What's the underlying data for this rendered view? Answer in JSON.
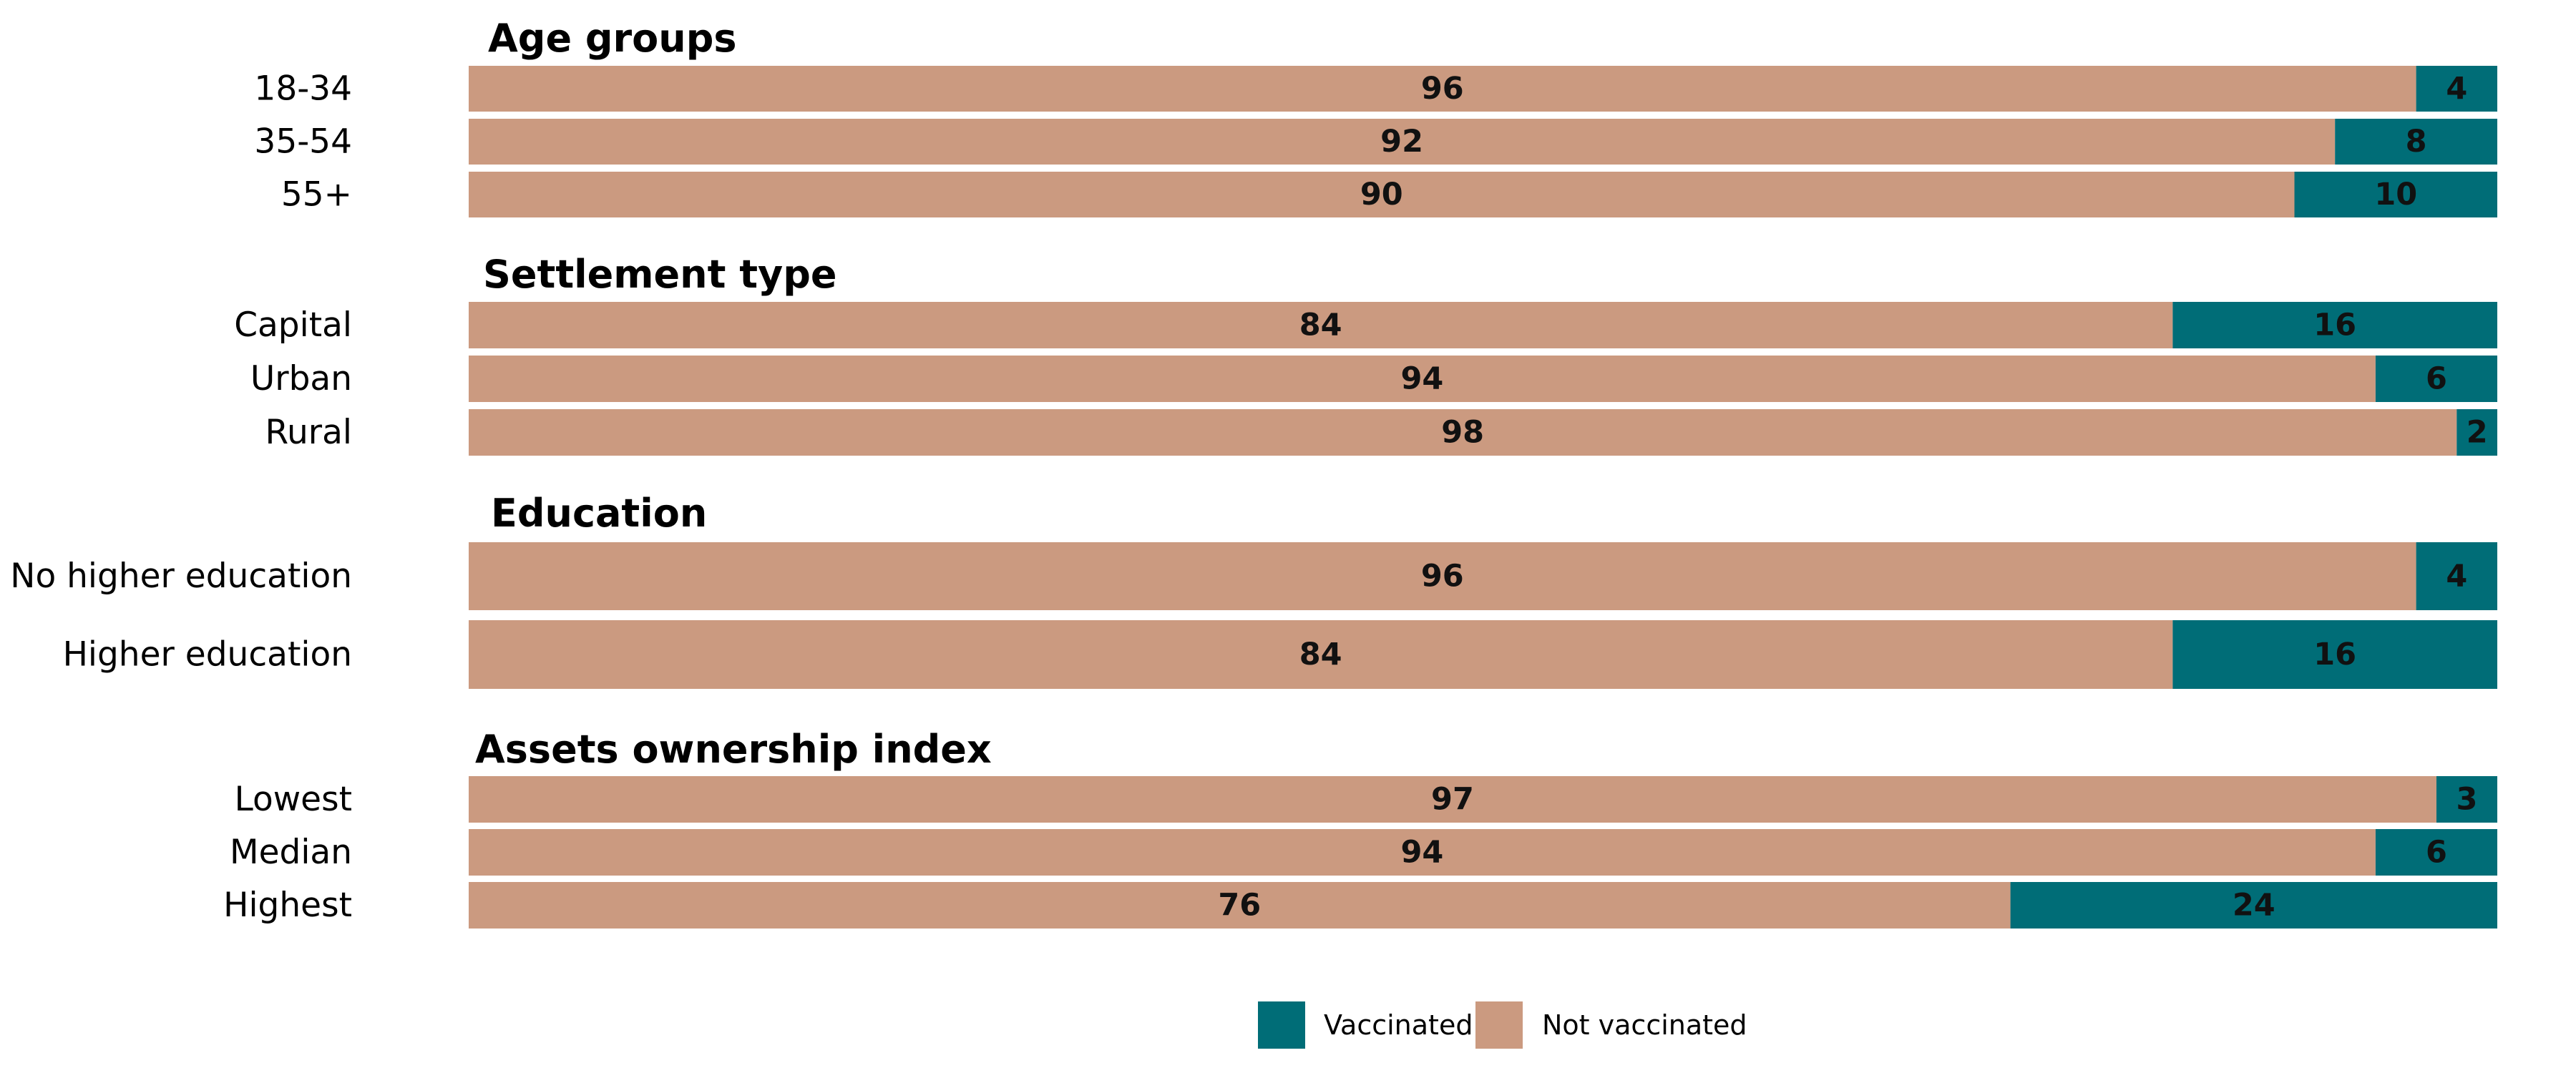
{
  "colors": {
    "vaccinated": "#006d77",
    "not_vaccinated": "#cb9a80"
  },
  "chart_data": {
    "type": "bar",
    "orientation": "horizontal",
    "stacked": true,
    "xlim": [
      0,
      100
    ],
    "grid": false,
    "legend_position": "bottom",
    "legend": [
      "Vaccinated",
      "Not vaccinated"
    ],
    "groups": [
      {
        "title": "Age groups",
        "categories": [
          "18-34",
          "35-54",
          "55+"
        ],
        "series": [
          {
            "name": "Not vaccinated",
            "values": [
              96,
              92,
              90
            ]
          },
          {
            "name": "Vaccinated",
            "values": [
              4,
              8,
              10
            ]
          }
        ]
      },
      {
        "title": "Settlement type",
        "categories": [
          "Capital",
          "Urban",
          "Rural"
        ],
        "series": [
          {
            "name": "Not vaccinated",
            "values": [
              84,
              94,
              98
            ]
          },
          {
            "name": "Vaccinated",
            "values": [
              16,
              6,
              2
            ]
          }
        ]
      },
      {
        "title": "Education",
        "categories": [
          "No higher education",
          "Higher education"
        ],
        "series": [
          {
            "name": "Not vaccinated",
            "values": [
              96,
              84
            ]
          },
          {
            "name": "Vaccinated",
            "values": [
              4,
              16
            ]
          }
        ]
      },
      {
        "title": "Assets ownership index",
        "categories": [
          "Lowest",
          "Median",
          "Highest"
        ],
        "series": [
          {
            "name": "Not vaccinated",
            "values": [
              97,
              94,
              76
            ]
          },
          {
            "name": "Vaccinated",
            "values": [
              3,
              6,
              24
            ]
          }
        ]
      }
    ]
  }
}
